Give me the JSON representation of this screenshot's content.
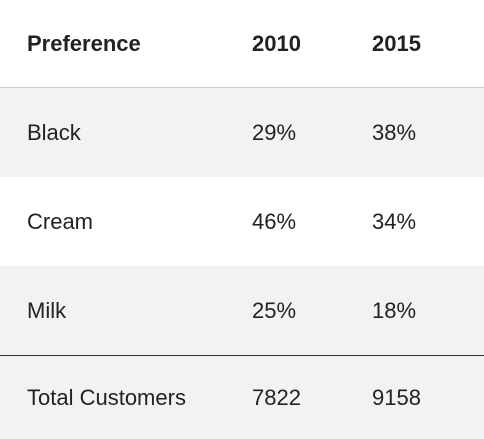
{
  "header": {
    "col1": "Preference",
    "col2": "2010",
    "col3": "2015"
  },
  "rows": [
    {
      "label": "Black",
      "v2010": "29%",
      "v2015": "38%"
    },
    {
      "label": "Cream",
      "v2010": "46%",
      "v2015": "34%"
    },
    {
      "label": "Milk",
      "v2010": "25%",
      "v2015": "18%"
    }
  ],
  "total": {
    "label": "Total Customers",
    "v2010": "7822",
    "v2015": "9158"
  }
}
